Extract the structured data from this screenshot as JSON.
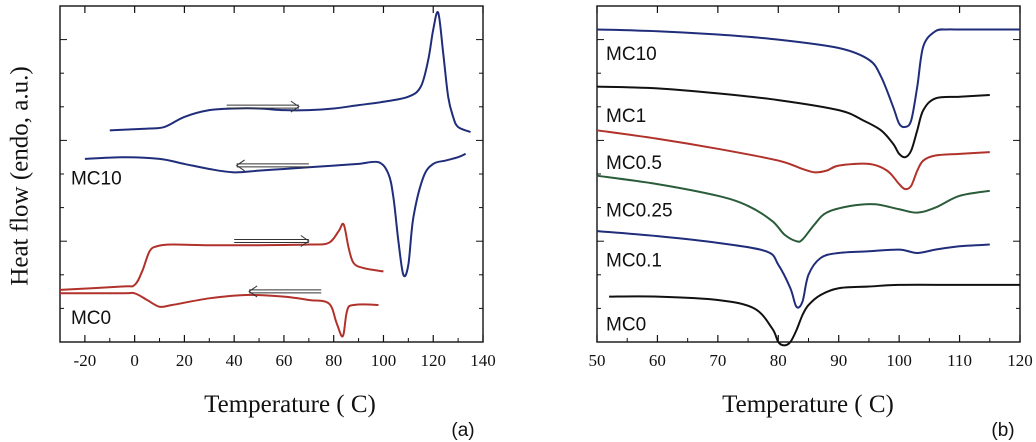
{
  "figure": {
    "panel_a_label": "(a)",
    "panel_b_label": "(b)"
  },
  "chart_data": [
    {
      "type": "line",
      "panel": "a",
      "title": "",
      "xlabel": "Temperature ( C)",
      "ylabel": "Heat flow (endo, a.u.)",
      "xlim": [
        -30,
        140
      ],
      "ylim": [
        0,
        10
      ],
      "xticks": [
        -20,
        0,
        20,
        40,
        60,
        80,
        100,
        120,
        140
      ],
      "yticks_visible": false,
      "series": [
        {
          "name": "MC10 heating",
          "color": "#1f2d7a",
          "x": [
            -10,
            5,
            12,
            20,
            30,
            40,
            50,
            60,
            70,
            80,
            90,
            100,
            110,
            115,
            118,
            120,
            122,
            124,
            126,
            128,
            130,
            135
          ],
          "y": [
            6.3,
            6.35,
            6.4,
            6.7,
            6.9,
            6.95,
            6.95,
            6.9,
            6.9,
            6.95,
            7.05,
            7.15,
            7.3,
            7.6,
            8.4,
            9.3,
            9.8,
            8.6,
            7.3,
            6.7,
            6.4,
            6.25
          ]
        },
        {
          "name": "MC10 cooling",
          "color": "#1f2d7a",
          "x": [
            -20,
            -5,
            10,
            20,
            30,
            40,
            50,
            60,
            70,
            80,
            90,
            98,
            102,
            104,
            106,
            108,
            110,
            112,
            116,
            120,
            125,
            130,
            133
          ],
          "y": [
            5.45,
            5.5,
            5.45,
            5.3,
            5.15,
            5.05,
            5.1,
            5.15,
            5.2,
            5.25,
            5.3,
            5.35,
            5.0,
            4.3,
            3.0,
            2.0,
            2.3,
            3.7,
            4.9,
            5.3,
            5.4,
            5.5,
            5.6
          ]
        },
        {
          "name": "MC0 heating",
          "color": "#b0322a",
          "x": [
            -30,
            -5,
            0,
            3,
            6,
            9,
            15,
            30,
            50,
            70,
            78,
            82,
            84,
            86,
            88,
            92,
            100
          ],
          "y": [
            1.55,
            1.65,
            1.7,
            2.1,
            2.7,
            2.85,
            2.9,
            2.88,
            2.88,
            2.9,
            2.95,
            3.3,
            3.5,
            2.8,
            2.35,
            2.2,
            2.1
          ]
        },
        {
          "name": "MC0 cooling",
          "color": "#b0322a",
          "x": [
            -30,
            -5,
            0,
            5,
            10,
            15,
            30,
            45,
            60,
            70,
            78,
            81,
            83,
            84,
            85,
            86,
            88,
            92,
            98
          ],
          "y": [
            1.45,
            1.45,
            1.45,
            1.25,
            1.05,
            1.1,
            1.3,
            1.4,
            1.35,
            1.25,
            1.15,
            0.6,
            0.2,
            0.25,
            0.8,
            1.05,
            1.1,
            1.12,
            1.1
          ]
        }
      ],
      "annotations": [
        {
          "text": "MC10",
          "x": -28,
          "y": 4.9
        },
        {
          "text": "MC0",
          "x": -28,
          "y": 0.75
        }
      ],
      "arrows": [
        {
          "direction": "right",
          "x_from": 37,
          "x_to": 66,
          "y": 7.05
        },
        {
          "direction": "left",
          "x_from": 70,
          "x_to": 41,
          "y": 5.3
        },
        {
          "direction": "right",
          "x_from": 40,
          "x_to": 70,
          "y": 3.05
        },
        {
          "direction": "left",
          "x_from": 75,
          "x_to": 46,
          "y": 1.55
        }
      ]
    },
    {
      "type": "line",
      "panel": "b",
      "title": "",
      "xlabel": "Temperature ( C)",
      "ylabel": "",
      "xlim": [
        50,
        120
      ],
      "ylim": [
        0,
        10
      ],
      "xticks": [
        50,
        60,
        70,
        80,
        90,
        100,
        110,
        120
      ],
      "yticks_visible": false,
      "series": [
        {
          "name": "MC10",
          "color": "#1f2d7a",
          "x": [
            50,
            60,
            70,
            80,
            90,
            95,
            97,
            99,
            100,
            101,
            102,
            103,
            104,
            106,
            108,
            110,
            120
          ],
          "y": [
            9.3,
            9.25,
            9.15,
            9.0,
            8.75,
            8.4,
            7.9,
            7.0,
            6.5,
            6.4,
            6.6,
            7.6,
            8.8,
            9.25,
            9.3,
            9.3,
            9.3
          ]
        },
        {
          "name": "MC1",
          "color": "#111111",
          "x": [
            50,
            60,
            70,
            80,
            90,
            94,
            97,
            99,
            100,
            101,
            102,
            103,
            104,
            106,
            110,
            115
          ],
          "y": [
            7.6,
            7.55,
            7.4,
            7.2,
            6.9,
            6.6,
            6.3,
            5.9,
            5.6,
            5.5,
            5.7,
            6.3,
            6.9,
            7.25,
            7.3,
            7.35
          ]
        },
        {
          "name": "MC0.5",
          "color": "#b0322a",
          "x": [
            50,
            60,
            70,
            80,
            84,
            86,
            88,
            90,
            95,
            98,
            100,
            101,
            102,
            103,
            104,
            106,
            110,
            115
          ],
          "y": [
            6.3,
            6.05,
            5.75,
            5.4,
            5.15,
            5.05,
            5.1,
            5.25,
            5.3,
            5.1,
            4.7,
            4.55,
            4.65,
            5.1,
            5.4,
            5.55,
            5.6,
            5.65
          ]
        },
        {
          "name": "MC0.25",
          "color": "#2a5c3a",
          "x": [
            50,
            60,
            70,
            75,
            79,
            81,
            83,
            84,
            86,
            88,
            92,
            96,
            100,
            103,
            106,
            110,
            115
          ],
          "y": [
            4.95,
            4.7,
            4.35,
            4.05,
            3.6,
            3.2,
            3.0,
            3.05,
            3.5,
            3.85,
            4.05,
            4.1,
            3.95,
            3.85,
            4.0,
            4.35,
            4.5
          ]
        },
        {
          "name": "MC0.1",
          "color": "#1f2d7a",
          "x": [
            50,
            60,
            70,
            78,
            80,
            82,
            83,
            84,
            85,
            87,
            90,
            95,
            100,
            103,
            106,
            110,
            115
          ],
          "y": [
            3.3,
            3.15,
            2.95,
            2.7,
            2.3,
            1.6,
            1.05,
            1.2,
            2.0,
            2.5,
            2.65,
            2.7,
            2.75,
            2.65,
            2.75,
            2.85,
            2.9
          ]
        },
        {
          "name": "MC0",
          "color": "#111111",
          "x": [
            52,
            60,
            70,
            76,
            79,
            80,
            81,
            82,
            83,
            84,
            85,
            87,
            90,
            95,
            100,
            110,
            120
          ],
          "y": [
            1.35,
            1.35,
            1.25,
            1.0,
            0.4,
            0.0,
            -0.1,
            0.0,
            0.35,
            0.8,
            1.1,
            1.4,
            1.6,
            1.65,
            1.7,
            1.7,
            1.7
          ]
        }
      ],
      "annotations": [
        {
          "text": "MC10",
          "x": 50.5,
          "y": 8.6
        },
        {
          "text": "MC1",
          "x": 50.5,
          "y": 6.75
        },
        {
          "text": "MC0.5",
          "x": 50.5,
          "y": 5.35
        },
        {
          "text": "MC0.25",
          "x": 50.5,
          "y": 3.95
        },
        {
          "text": "MC0.1",
          "x": 50.5,
          "y": 2.45
        },
        {
          "text": "MC0",
          "x": 50.5,
          "y": 0.55
        }
      ]
    }
  ]
}
